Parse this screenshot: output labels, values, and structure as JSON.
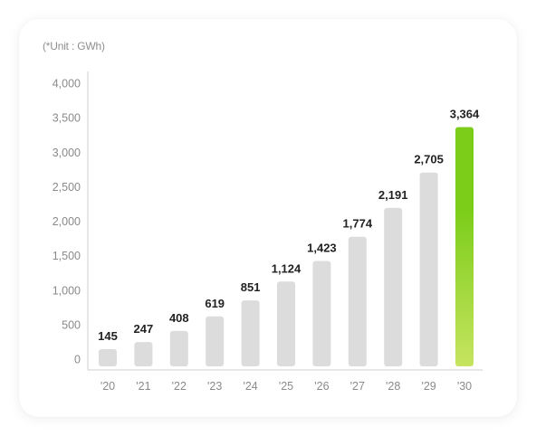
{
  "unit_label": "(*Unit : GWh)",
  "chart_data": {
    "type": "bar",
    "categories": [
      "'20",
      "'21",
      "'22",
      "'23",
      "'24",
      "'25",
      "'26",
      "'27",
      "'28",
      "'29",
      "'30"
    ],
    "values": [
      145,
      247,
      408,
      619,
      851,
      1124,
      1423,
      1774,
      2191,
      2705,
      3364
    ],
    "data_labels": [
      "145",
      "247",
      "408",
      "619",
      "851",
      "1,124",
      "1,423",
      "1,774",
      "2,191",
      "2,705",
      "3,364"
    ],
    "yticks": [
      0,
      500,
      1000,
      1500,
      2000,
      2500,
      3000,
      3500,
      4000
    ],
    "ytick_labels": [
      "0",
      "500",
      "1,000",
      "1,500",
      "2,000",
      "2,500",
      "3,000",
      "3,500",
      "4,000"
    ],
    "ylim": [
      0,
      4000
    ],
    "title": "",
    "xlabel": "",
    "ylabel": "",
    "grid": false,
    "colors": {
      "bar": "#dcdcdc",
      "highlight_top": "#7ccd1a",
      "highlight_bottom": "#c6e460",
      "axis": "#cfcfcf"
    },
    "highlight_index": 10
  }
}
